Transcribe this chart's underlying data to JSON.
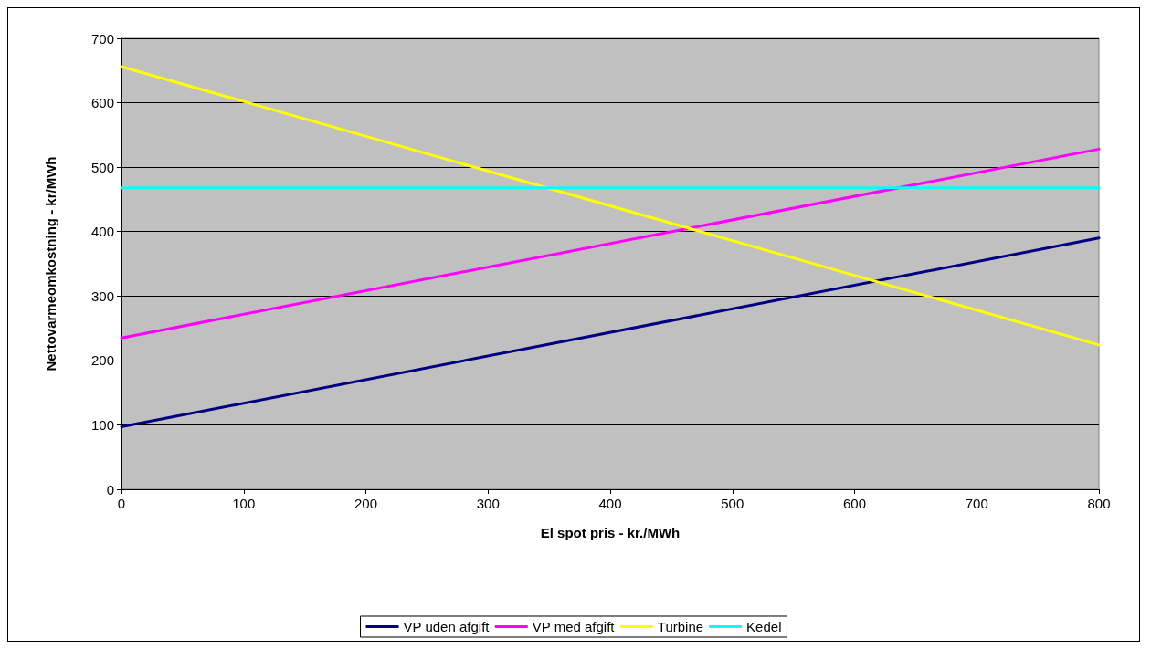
{
  "chart_data": {
    "type": "line",
    "xlabel": "El spot pris - kr./MWh",
    "ylabel": "Nettovarmeomkostning - kr/MWh",
    "x": [
      0,
      800
    ],
    "series": [
      {
        "name": "VP uden afgift",
        "color": "#000080",
        "values": [
          97,
          390
        ]
      },
      {
        "name": "VP med afgift",
        "color": "#ff00ff",
        "values": [
          235,
          528
        ]
      },
      {
        "name": "Turbine",
        "color": "#ffff00",
        "values": [
          656,
          224
        ]
      },
      {
        "name": "Kedel",
        "color": "#00ffff",
        "values": [
          468,
          468
        ]
      }
    ],
    "xlim": [
      0,
      800
    ],
    "xticks": [
      0,
      100,
      200,
      300,
      400,
      500,
      600,
      700,
      800
    ],
    "ylim": [
      0,
      700
    ],
    "yticks": [
      0,
      100,
      200,
      300,
      400,
      500,
      600,
      700
    ],
    "grid": "y",
    "legend": "bottom",
    "marker": "none",
    "line_style": "solid"
  }
}
